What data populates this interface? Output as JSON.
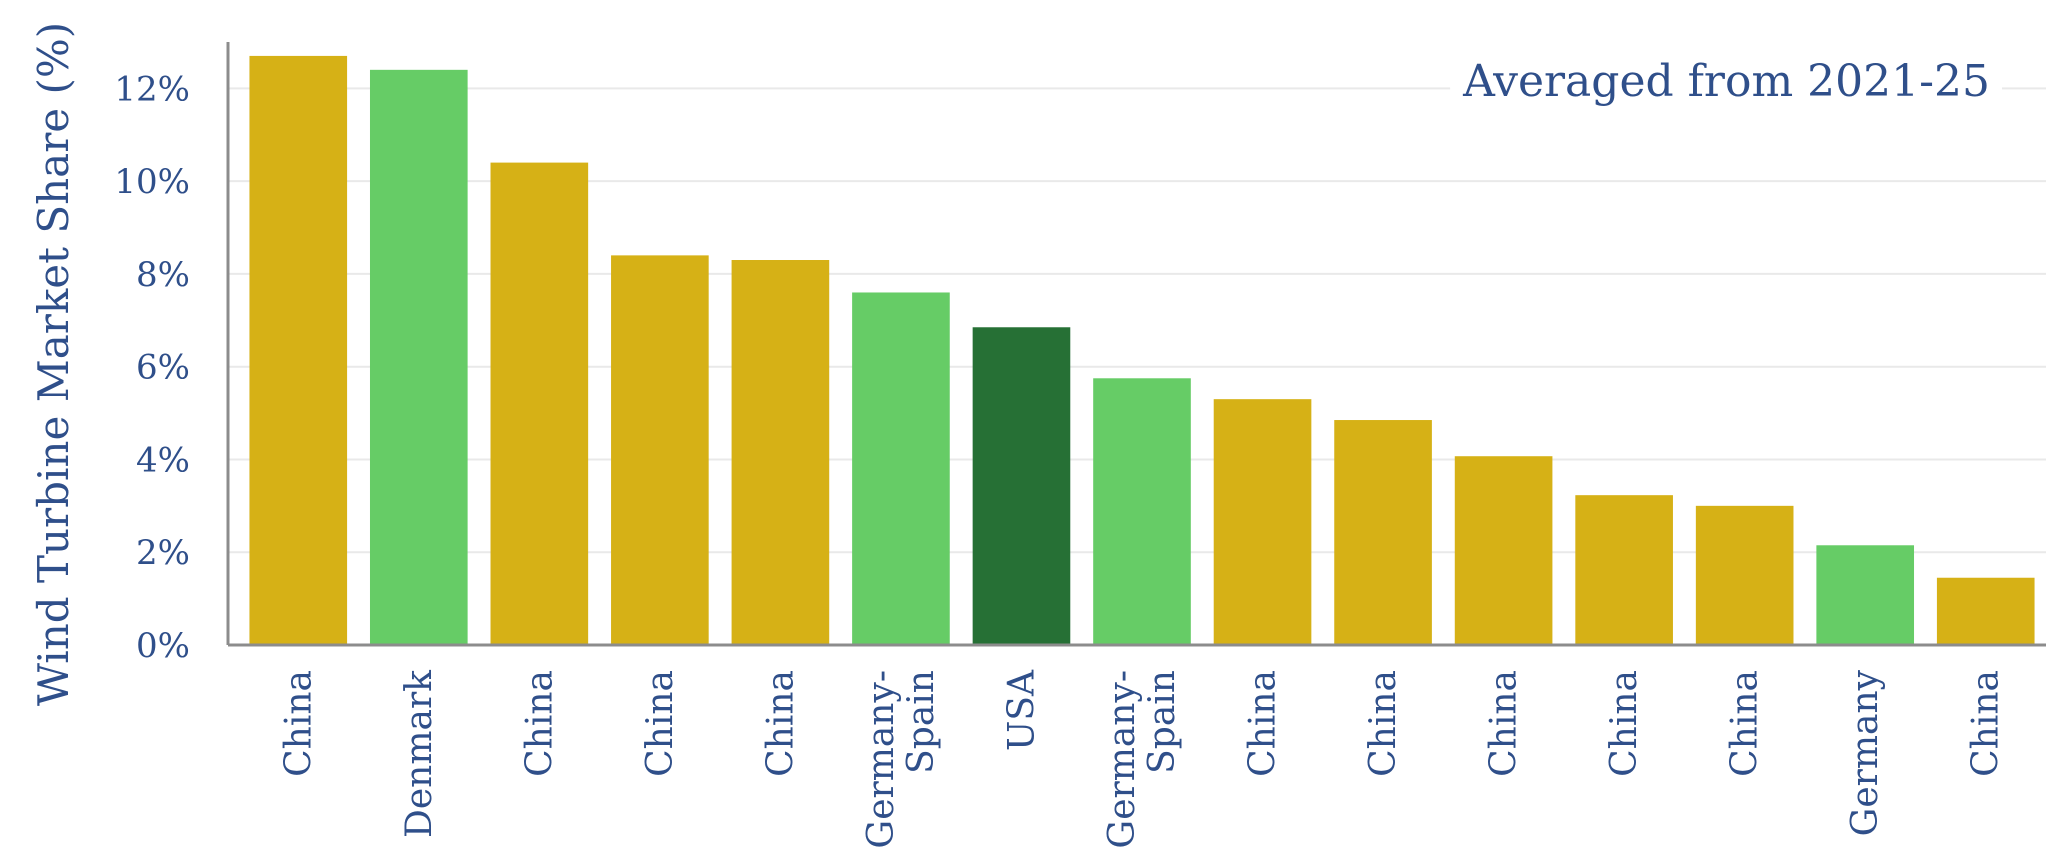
{
  "chart_data": {
    "type": "bar",
    "ylabel": "Wind Turbine Market Share (%)",
    "annotation": "Averaged from 2021-25",
    "ylim": [
      0,
      13
    ],
    "y_ticks": [
      {
        "value": 0,
        "label": "0%"
      },
      {
        "value": 2,
        "label": "2%"
      },
      {
        "value": 4,
        "label": "4%"
      },
      {
        "value": 6,
        "label": "6%"
      },
      {
        "value": 8,
        "label": "8%"
      },
      {
        "value": 10,
        "label": "10%"
      },
      {
        "value": 12,
        "label": "12%"
      }
    ],
    "grid": true,
    "colors": {
      "china": "#d6b116",
      "europe": "#66cc66",
      "usa": "#267035",
      "text": "#2f4f8a",
      "axis": "#8c8c8c",
      "grid": "#e9e9e9"
    },
    "bars": [
      {
        "category": [
          "China"
        ],
        "value": 12.7,
        "color": "#d6b116"
      },
      {
        "category": [
          "Denmark"
        ],
        "value": 12.4,
        "color": "#66cc66"
      },
      {
        "category": [
          "China"
        ],
        "value": 10.4,
        "color": "#d6b116"
      },
      {
        "category": [
          "China"
        ],
        "value": 8.4,
        "color": "#d6b116"
      },
      {
        "category": [
          "China"
        ],
        "value": 8.3,
        "color": "#d6b116"
      },
      {
        "category": [
          "Germany-",
          "Spain"
        ],
        "value": 7.6,
        "color": "#66cc66"
      },
      {
        "category": [
          "USA"
        ],
        "value": 6.85,
        "color": "#267035"
      },
      {
        "category": [
          "Germany-",
          "Spain"
        ],
        "value": 5.75,
        "color": "#66cc66"
      },
      {
        "category": [
          "China"
        ],
        "value": 5.3,
        "color": "#d6b116"
      },
      {
        "category": [
          "China"
        ],
        "value": 4.85,
        "color": "#d6b116"
      },
      {
        "category": [
          "China"
        ],
        "value": 4.07,
        "color": "#d6b116"
      },
      {
        "category": [
          "China"
        ],
        "value": 3.23,
        "color": "#d6b116"
      },
      {
        "category": [
          "China"
        ],
        "value": 3.0,
        "color": "#d6b116"
      },
      {
        "category": [
          "Germany"
        ],
        "value": 2.15,
        "color": "#66cc66"
      },
      {
        "category": [
          "China"
        ],
        "value": 1.45,
        "color": "#d6b116"
      }
    ]
  }
}
